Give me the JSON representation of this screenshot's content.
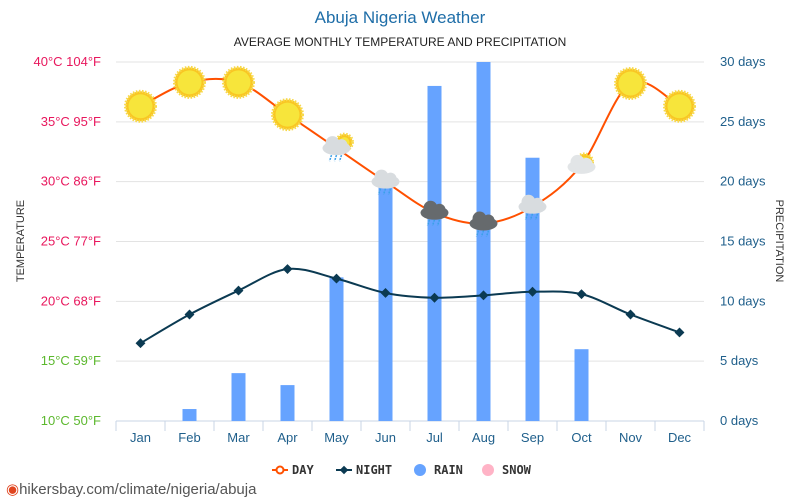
{
  "header": {
    "title": "Abuja Nigeria Weather",
    "subtitle": "AVERAGE MONTHLY TEMPERATURE AND PRECIPITATION"
  },
  "footer": {
    "url": "hikersbay.com/climate/nigeria/abuja"
  },
  "chart_data": {
    "type": "bar+line",
    "title": "Abuja Nigeria Weather",
    "subtitle": "AVERAGE MONTHLY TEMPERATURE AND PRECIPITATION",
    "categories": [
      "Jan",
      "Feb",
      "Mar",
      "Apr",
      "May",
      "Jun",
      "Jul",
      "Aug",
      "Sep",
      "Oct",
      "Nov",
      "Dec"
    ],
    "ylabel": "TEMPERATURE",
    "y2label": "PRECIPITATION",
    "ylim": [
      10,
      40
    ],
    "y2lim": [
      0,
      30
    ],
    "yticks": [
      {
        "v": 40,
        "label": "40°C 104°F",
        "color": "#e8175d"
      },
      {
        "v": 35,
        "label": "35°C 95°F",
        "color": "#e8175d"
      },
      {
        "v": 30,
        "label": "30°C 86°F",
        "color": "#e8175d"
      },
      {
        "v": 25,
        "label": "25°C 77°F",
        "color": "#e8175d"
      },
      {
        "v": 20,
        "label": "20°C 68°F",
        "color": "#e8175d"
      },
      {
        "v": 15,
        "label": "15°C 59°F",
        "color": "#5cb82e"
      },
      {
        "v": 10,
        "label": "10°C 50°F",
        "color": "#5cb82e"
      }
    ],
    "y2ticks": [
      {
        "v": 30,
        "label": "30 days"
      },
      {
        "v": 25,
        "label": "25 days"
      },
      {
        "v": 20,
        "label": "20 days"
      },
      {
        "v": 15,
        "label": "15 days"
      },
      {
        "v": 10,
        "label": "10 days"
      },
      {
        "v": 5,
        "label": "5 days"
      },
      {
        "v": 0,
        "label": "0 days"
      }
    ],
    "series": [
      {
        "name": "DAY",
        "type": "line",
        "color": "#ff5000",
        "values": [
          36.3,
          38.3,
          38.3,
          35.6,
          32.8,
          30.0,
          27.4,
          26.5,
          27.9,
          31.4,
          38.2,
          36.3
        ]
      },
      {
        "name": "NIGHT",
        "type": "line",
        "color": "#0b3a52",
        "values": [
          16.5,
          18.9,
          20.9,
          22.7,
          21.9,
          20.7,
          20.3,
          20.5,
          20.8,
          20.6,
          18.9,
          17.4
        ]
      },
      {
        "name": "RAIN",
        "type": "bar",
        "color": "#66a3ff",
        "values": [
          0,
          1,
          4,
          3,
          12,
          20,
          28,
          30,
          22,
          6,
          0,
          0
        ]
      },
      {
        "name": "SNOW",
        "type": "bar",
        "color": "#ffb3c6",
        "values": [
          0,
          0,
          0,
          0,
          0,
          0,
          0,
          0,
          0,
          0,
          0,
          0
        ]
      }
    ],
    "weather_icons": [
      "sun",
      "sun",
      "sun",
      "sun",
      "partly-cloudy-rain",
      "cloud-rain",
      "heavy-rain",
      "heavy-rain",
      "cloud-rain",
      "partly-cloudy",
      "sun",
      "sun"
    ],
    "legend_position": "bottom",
    "grid": true
  }
}
